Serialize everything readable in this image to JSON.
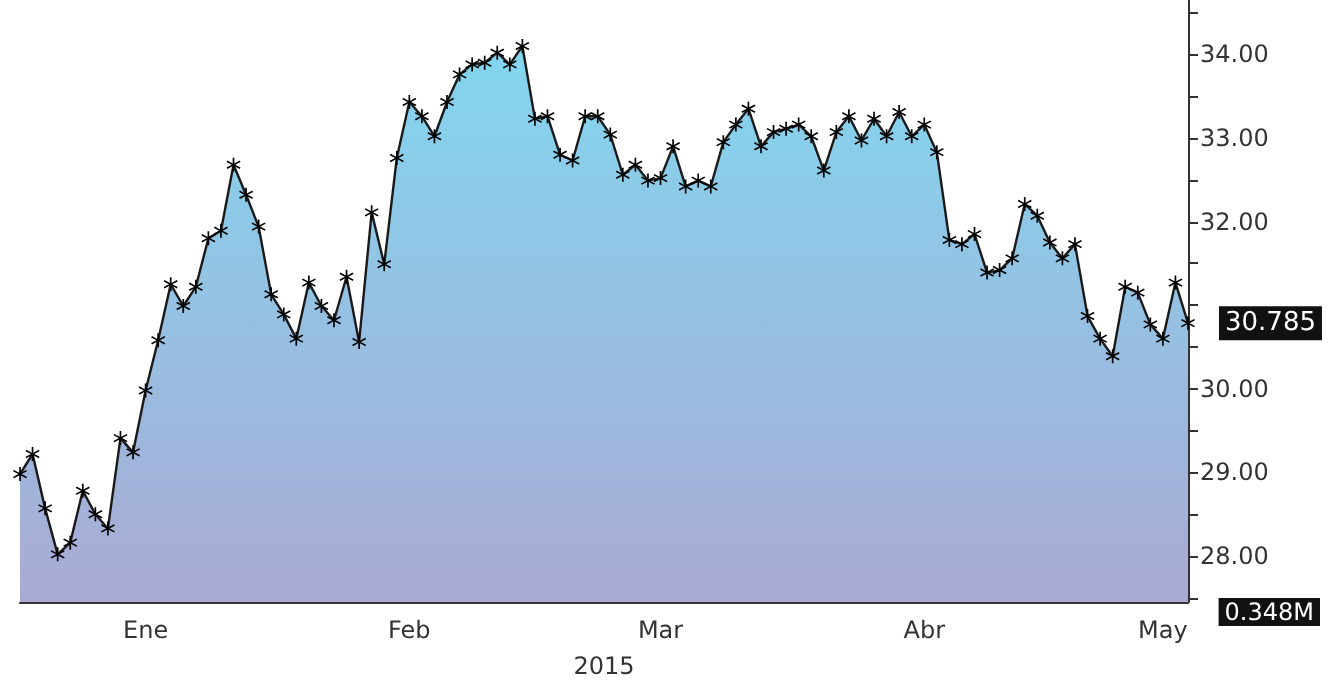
{
  "chart_data": {
    "type": "area",
    "xlabel": "2015",
    "categories": [
      null,
      null,
      null,
      null,
      null,
      null,
      null,
      null,
      null,
      null,
      "Ene",
      null,
      null,
      null,
      null,
      null,
      null,
      null,
      null,
      null,
      null,
      null,
      null,
      null,
      null,
      null,
      null,
      null,
      null,
      null,
      null,
      "Feb",
      null,
      null,
      null,
      null,
      null,
      null,
      null,
      null,
      null,
      null,
      null,
      null,
      null,
      null,
      null,
      null,
      null,
      null,
      null,
      "Mar",
      null,
      null,
      null,
      null,
      null,
      null,
      null,
      null,
      null,
      null,
      null,
      null,
      null,
      null,
      null,
      null,
      null,
      null,
      null,
      null,
      "Abr",
      null,
      null,
      null,
      null,
      null,
      null,
      null,
      null,
      null,
      null,
      null,
      null,
      null,
      null,
      null,
      null,
      null,
      null,
      "May",
      null,
      null
    ],
    "series": [
      {
        "color": "#82d6ef",
        "values": [
          28.98,
          29.22,
          28.57,
          28.02,
          28.16,
          28.78,
          28.5,
          28.33,
          29.41,
          29.24,
          29.98,
          30.58,
          31.25,
          30.99,
          31.22,
          31.8,
          31.89,
          32.68,
          32.32,
          31.94,
          31.13,
          30.89,
          30.6,
          31.27,
          30.99,
          30.82,
          31.34,
          30.56,
          32.11,
          31.49,
          32.76,
          33.43,
          33.26,
          33.02,
          33.43,
          33.76,
          33.88,
          33.9,
          34.02,
          33.88,
          34.1,
          33.23,
          33.26,
          32.8,
          32.73,
          33.26,
          33.26,
          33.04,
          32.56,
          32.68,
          32.49,
          32.52,
          32.9,
          32.42,
          32.49,
          32.42,
          32.95,
          33.16,
          33.35,
          32.9,
          33.07,
          33.11,
          33.16,
          33.02,
          32.61,
          33.07,
          33.26,
          32.97,
          33.23,
          33.02,
          33.31,
          33.02,
          33.16,
          32.83,
          31.78,
          31.73,
          31.85,
          31.39,
          31.42,
          31.56,
          32.21,
          32.07,
          31.75,
          31.56,
          31.73,
          30.87,
          30.6,
          30.39,
          31.22,
          31.15,
          30.77,
          30.6,
          31.27,
          30.785
        ],
        "value_labels": [
          null,
          null,
          null,
          null,
          null,
          null,
          null,
          null,
          null,
          null,
          null,
          null,
          null,
          null,
          null,
          null,
          null,
          null,
          null,
          null,
          null,
          null,
          null,
          null,
          null,
          null,
          null,
          null,
          null,
          null,
          null,
          null,
          null,
          null,
          null,
          null,
          null,
          null,
          null,
          null,
          null,
          null,
          null,
          null,
          null,
          null,
          null,
          null,
          null,
          null,
          null,
          null,
          null,
          null,
          null,
          null,
          null,
          null,
          null,
          null,
          null,
          null,
          null,
          null,
          null,
          null,
          null,
          null,
          null,
          null,
          null,
          null,
          null,
          null,
          null,
          null,
          null,
          null,
          null,
          null,
          null,
          null,
          null,
          null,
          null,
          null,
          null,
          null,
          null,
          null,
          null,
          null,
          null,
          "30.785"
        ]
      }
    ],
    "ylim": [
      27.45,
      34.65
    ],
    "yticks": [
      {
        "value": 27.5,
        "label": null
      },
      {
        "value": 28,
        "label": "28.00"
      },
      {
        "value": 28.5,
        "label": null
      },
      {
        "value": 29,
        "label": "29.00"
      },
      {
        "value": 29.5,
        "label": null
      },
      {
        "value": 30,
        "label": "30.00"
      },
      {
        "value": 30.5,
        "label": null
      },
      {
        "value": 31,
        "label": null
      },
      {
        "value": 31.5,
        "label": null
      },
      {
        "value": 32,
        "label": "32.00"
      },
      {
        "value": 32.5,
        "label": null
      },
      {
        "value": 33,
        "label": "33.00"
      },
      {
        "value": 33.5,
        "label": null
      },
      {
        "value": 34,
        "label": "34.00"
      },
      {
        "value": 34.5,
        "label": null
      }
    ],
    "grid": false,
    "marker": "star",
    "line_style": "solid",
    "annotations": [
      "0.348M"
    ]
  }
}
